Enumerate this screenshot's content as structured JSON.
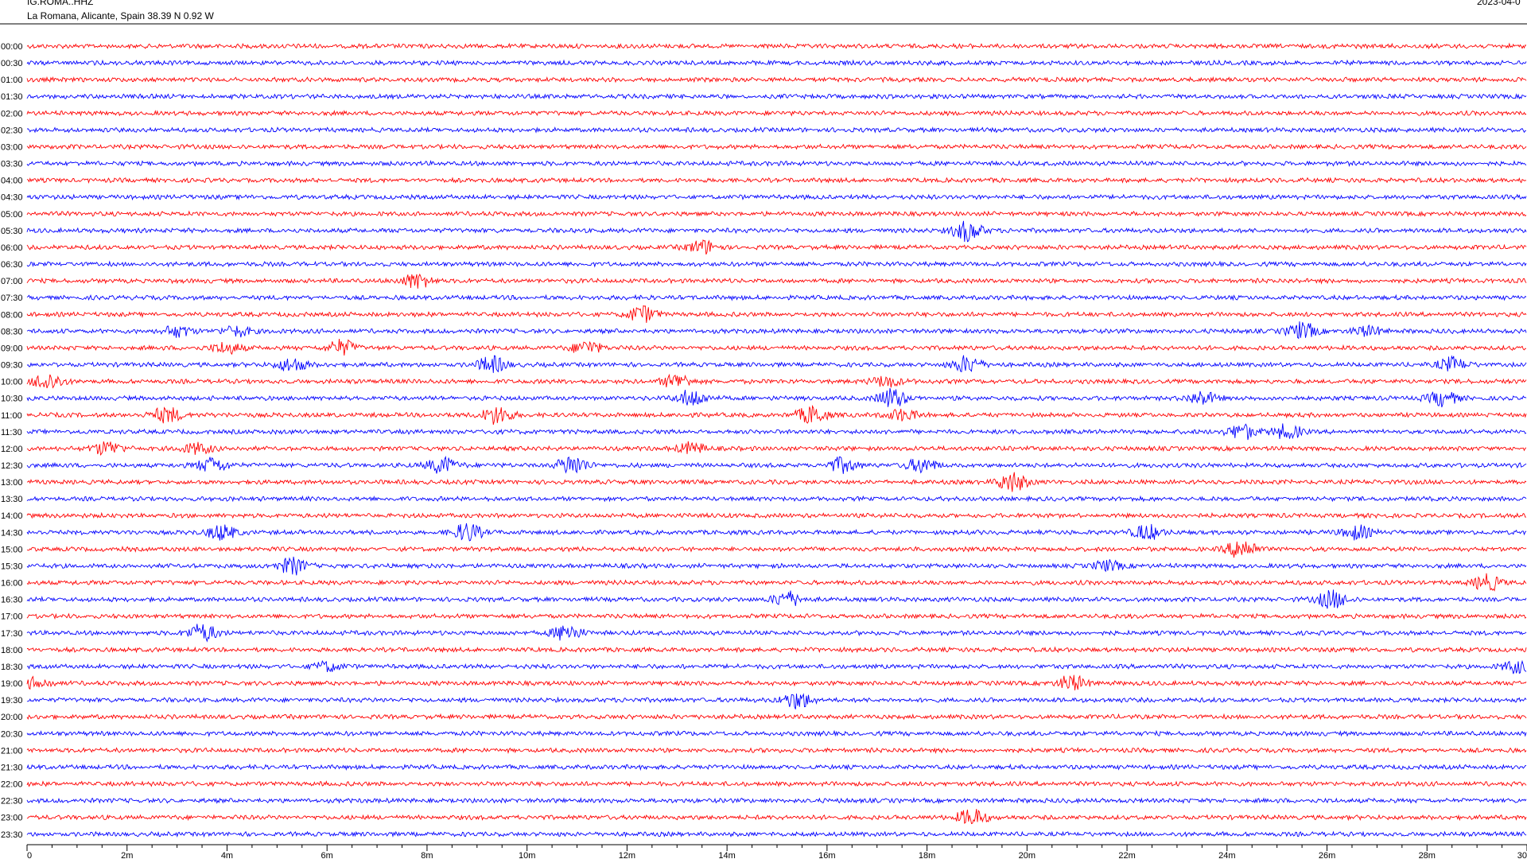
{
  "header": {
    "station": "IG.ROMA..HHZ",
    "location": "La Romana, Alicante, Spain  38.39 N 0.92 W",
    "date": "2023-04-0"
  },
  "colors": {
    "row_a": "#ff0000",
    "row_b": "#0000ff",
    "axis": "#000000"
  },
  "chart_data": {
    "type": "line",
    "subtype": "helicorder",
    "row_duration_min": 30,
    "rows": [
      "00:00",
      "00:30",
      "01:00",
      "01:30",
      "02:00",
      "02:30",
      "03:00",
      "03:30",
      "04:00",
      "04:30",
      "05:00",
      "05:30",
      "06:00",
      "06:30",
      "07:00",
      "07:30",
      "08:00",
      "08:30",
      "09:00",
      "09:30",
      "10:00",
      "10:30",
      "11:00",
      "11:30",
      "12:00",
      "12:30",
      "13:00",
      "13:30",
      "14:00",
      "14:30",
      "15:00",
      "15:30",
      "16:00",
      "16:30",
      "17:00",
      "17:30",
      "18:00",
      "18:30",
      "19:00",
      "19:30",
      "20:00",
      "20:30",
      "21:00",
      "21:30",
      "22:00",
      "22:30",
      "23:00",
      "23:30"
    ],
    "xticks": [
      "0",
      "2m",
      "4m",
      "6m",
      "8m",
      "10m",
      "12m",
      "14m",
      "16m",
      "18m",
      "20m",
      "22m",
      "24m",
      "26m",
      "28m",
      "30"
    ],
    "xlim": [
      0,
      30
    ],
    "xlabel": "",
    "ylabel": "",
    "events": [
      {
        "row": "05:30",
        "t": 18.8,
        "amp": 3.0
      },
      {
        "row": "06:00",
        "t": 13.5,
        "amp": 2.0
      },
      {
        "row": "07:00",
        "t": 7.8,
        "amp": 2.2
      },
      {
        "row": "08:00",
        "t": 12.3,
        "amp": 2.4
      },
      {
        "row": "08:30",
        "t": 3.0,
        "amp": 1.6
      },
      {
        "row": "08:30",
        "t": 4.2,
        "amp": 1.5
      },
      {
        "row": "08:30",
        "t": 25.5,
        "amp": 2.4
      },
      {
        "row": "08:30",
        "t": 26.8,
        "amp": 1.4
      },
      {
        "row": "09:00",
        "t": 4.0,
        "amp": 1.6
      },
      {
        "row": "09:00",
        "t": 6.3,
        "amp": 2.2
      },
      {
        "row": "09:00",
        "t": 11.2,
        "amp": 2.0
      },
      {
        "row": "09:30",
        "t": 5.3,
        "amp": 2.0
      },
      {
        "row": "09:30",
        "t": 9.3,
        "amp": 2.4
      },
      {
        "row": "09:30",
        "t": 18.8,
        "amp": 2.4
      },
      {
        "row": "09:30",
        "t": 28.5,
        "amp": 2.0
      },
      {
        "row": "10:00",
        "t": 0.4,
        "amp": 2.6
      },
      {
        "row": "10:00",
        "t": 13.0,
        "amp": 2.0
      },
      {
        "row": "10:00",
        "t": 17.2,
        "amp": 1.6
      },
      {
        "row": "10:30",
        "t": 13.3,
        "amp": 2.4
      },
      {
        "row": "10:30",
        "t": 17.3,
        "amp": 2.8
      },
      {
        "row": "10:30",
        "t": 23.5,
        "amp": 2.0
      },
      {
        "row": "10:30",
        "t": 28.3,
        "amp": 2.2
      },
      {
        "row": "11:00",
        "t": 2.8,
        "amp": 2.2
      },
      {
        "row": "11:00",
        "t": 9.4,
        "amp": 2.6
      },
      {
        "row": "11:00",
        "t": 15.7,
        "amp": 2.6
      },
      {
        "row": "11:00",
        "t": 17.5,
        "amp": 1.6
      },
      {
        "row": "11:30",
        "t": 24.3,
        "amp": 2.2
      },
      {
        "row": "11:30",
        "t": 25.2,
        "amp": 2.0
      },
      {
        "row": "12:00",
        "t": 1.6,
        "amp": 2.0
      },
      {
        "row": "12:00",
        "t": 3.4,
        "amp": 1.6
      },
      {
        "row": "12:00",
        "t": 13.3,
        "amp": 1.6
      },
      {
        "row": "12:30",
        "t": 3.7,
        "amp": 2.2
      },
      {
        "row": "12:30",
        "t": 8.3,
        "amp": 2.4
      },
      {
        "row": "12:30",
        "t": 10.9,
        "amp": 3.0
      },
      {
        "row": "12:30",
        "t": 16.3,
        "amp": 2.2
      },
      {
        "row": "12:30",
        "t": 17.9,
        "amp": 2.2
      },
      {
        "row": "13:00",
        "t": 19.7,
        "amp": 2.8
      },
      {
        "row": "14:30",
        "t": 3.9,
        "amp": 2.2
      },
      {
        "row": "14:30",
        "t": 8.8,
        "amp": 2.6
      },
      {
        "row": "14:30",
        "t": 22.4,
        "amp": 2.2
      },
      {
        "row": "14:30",
        "t": 26.6,
        "amp": 2.0
      },
      {
        "row": "15:00",
        "t": 24.3,
        "amp": 3.0
      },
      {
        "row": "15:30",
        "t": 5.3,
        "amp": 2.4
      },
      {
        "row": "15:30",
        "t": 21.6,
        "amp": 1.4
      },
      {
        "row": "16:00",
        "t": 29.2,
        "amp": 2.2
      },
      {
        "row": "16:30",
        "t": 15.2,
        "amp": 2.2
      },
      {
        "row": "16:30",
        "t": 26.1,
        "amp": 2.6
      },
      {
        "row": "17:30",
        "t": 3.5,
        "amp": 2.6
      },
      {
        "row": "17:30",
        "t": 10.8,
        "amp": 2.4
      },
      {
        "row": "18:30",
        "t": 6.0,
        "amp": 1.4
      },
      {
        "row": "18:30",
        "t": 29.8,
        "amp": 1.8
      },
      {
        "row": "19:00",
        "t": 0.2,
        "amp": 1.6
      },
      {
        "row": "19:00",
        "t": 20.9,
        "amp": 2.2
      },
      {
        "row": "19:30",
        "t": 15.4,
        "amp": 2.4
      },
      {
        "row": "23:00",
        "t": 18.9,
        "amp": 2.4
      }
    ]
  }
}
